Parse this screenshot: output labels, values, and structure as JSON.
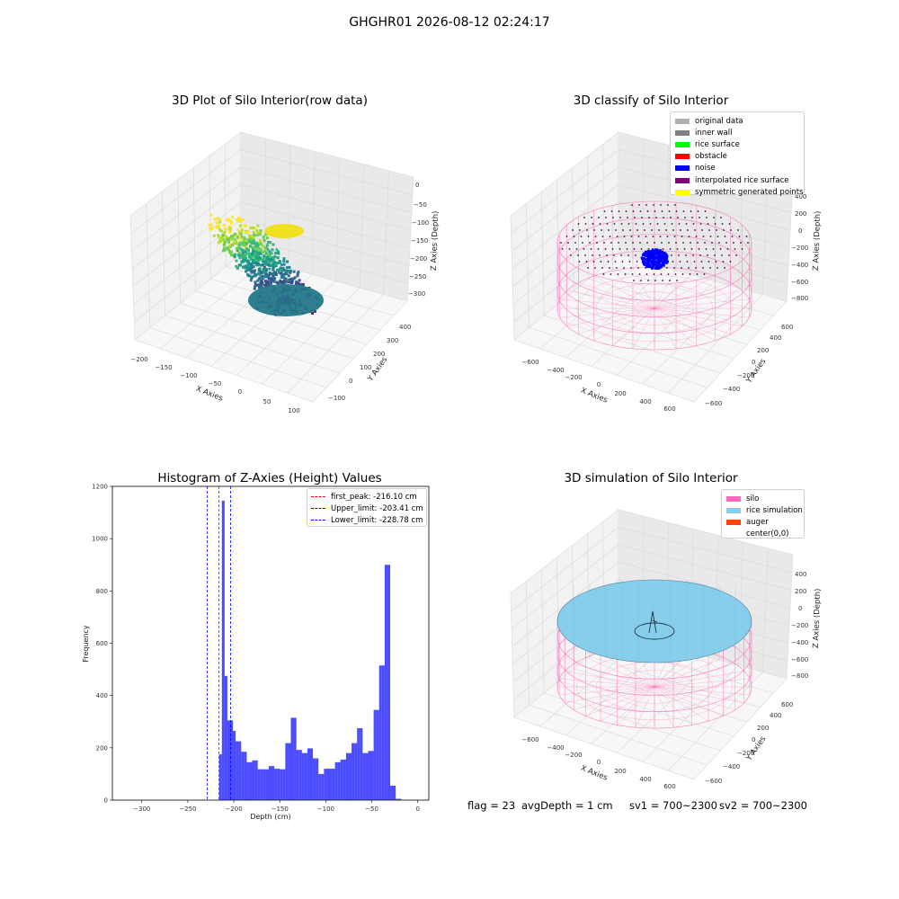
{
  "figure": {
    "suptitle": "GHGHR01 2026-08-12 02:24:17",
    "footer": {
      "flag": "flag = 23",
      "avg_depth": "avgDepth = 1 cm",
      "sv1": "sv1 = 700~2300",
      "sv2": "sv2 = 700~2300"
    }
  },
  "panels": {
    "raw": {
      "title": "3D Plot of Silo Interior(row data)",
      "xlabel": "X Axies",
      "ylabel": "Y Axies",
      "zlabel": "Z Axies (Depth)",
      "xticks": [
        "−200",
        "−150",
        "−100",
        "−50",
        "0",
        "50",
        "100"
      ],
      "yticks": [
        "−100",
        "0",
        "100",
        "200",
        "300",
        "400"
      ],
      "zticks": [
        "0",
        "−50",
        "−100",
        "−150",
        "−200",
        "−250",
        "−300"
      ],
      "colormap": "viridis"
    },
    "classify": {
      "title": "3D classify of Silo Interior",
      "xlabel": "X Axies",
      "ylabel": "Y Axies",
      "zlabel": "Z Axies (Depth)",
      "xticks": [
        "−600",
        "−400",
        "−200",
        "0",
        "200",
        "400",
        "600"
      ],
      "yticks": [
        "−600",
        "−400",
        "−200",
        "0",
        "200",
        "400",
        "600"
      ],
      "zticks": [
        "400",
        "200",
        "0",
        "−200",
        "−400",
        "−600",
        "−800"
      ],
      "legend": [
        {
          "label": "original data",
          "color": "#b0b0b0"
        },
        {
          "label": "inner wall",
          "color": "#808080"
        },
        {
          "label": "rice surface",
          "color": "#00ff00"
        },
        {
          "label": "obstacle",
          "color": "#ff0000"
        },
        {
          "label": "noise",
          "color": "#0000ff"
        },
        {
          "label": "interpolated rice surface",
          "color": "#800080"
        },
        {
          "label": "symmetric generated points",
          "color": "#ffff00"
        }
      ]
    },
    "simulation": {
      "title": "3D simulation of Silo Interior",
      "xlabel": "X Axies",
      "ylabel": "Y Axies",
      "zlabel": "Z Axies (Depth)",
      "xticks": [
        "−600",
        "−400",
        "−200",
        "0",
        "200",
        "400",
        "600"
      ],
      "yticks": [
        "−600",
        "−400",
        "−200",
        "0",
        "200",
        "400",
        "600"
      ],
      "zticks": [
        "400",
        "200",
        "0",
        "−200",
        "−400",
        "−600",
        "−800"
      ],
      "legend": [
        {
          "label": "silo",
          "color": "#ff69b4"
        },
        {
          "label": "rice simulation",
          "color": "#87ceeb"
        },
        {
          "label": "auger",
          "color": "#ff4500"
        },
        {
          "label": "center(0,0)",
          "color": "#ffffff"
        }
      ]
    }
  },
  "chart_data": [
    {
      "type": "scatter",
      "title": "3D Plot of Silo Interior(row data)",
      "xlabel": "X Axies",
      "ylabel": "Y Axies",
      "zlabel": "Z Axies (Depth)",
      "xlim": [
        -210,
        120
      ],
      "ylim": [
        -130,
        460
      ],
      "zlim": [
        -330,
        10
      ]
    },
    {
      "type": "scatter",
      "title": "3D classify of Silo Interior",
      "xlabel": "X Axies",
      "ylabel": "Y Axies",
      "zlabel": "Z Axies (Depth)",
      "xlim": [
        -700,
        700
      ],
      "ylim": [
        -700,
        700
      ],
      "zlim": [
        -900,
        400
      ]
    },
    {
      "type": "bar",
      "title": "Histogram of Z-Axies (Height) Values",
      "xlabel": "Depth (cm)",
      "ylabel": "Frequency",
      "xlim": [
        -332,
        12
      ],
      "ylim": [
        0,
        1200
      ],
      "xticks": [
        -300,
        -250,
        -200,
        -150,
        -100,
        -50,
        0
      ],
      "yticks": [
        0,
        200,
        400,
        600,
        800,
        1000,
        1200
      ],
      "bar_color": "#0000ff",
      "bins_left": [
        -222,
        -219,
        -216,
        -213,
        -210,
        -207,
        -204,
        -201,
        -198,
        -195,
        -192,
        -189,
        -186,
        -183,
        -180,
        -177,
        -174,
        -171,
        -168,
        -165,
        -162,
        -159,
        -156,
        -153,
        -150,
        -147,
        -144,
        -141,
        -138,
        -135,
        -132,
        -129,
        -126,
        -123,
        -120,
        -117,
        -114,
        -111,
        -108,
        -105,
        -102,
        -99,
        -96,
        -93,
        -90,
        -87,
        -84,
        -81,
        -78,
        -75,
        -72,
        -69,
        -66,
        -63,
        -60,
        -57,
        -54,
        -51,
        -48,
        -45,
        -42,
        -39,
        -36,
        -33,
        -30,
        -27,
        -24,
        -21,
        -18,
        -15,
        -12,
        -9,
        -6,
        -3,
        0
      ],
      "bin_width": 3,
      "values": [
        0,
        0,
        175,
        1145,
        475,
        305,
        305,
        265,
        225,
        225,
        185,
        185,
        145,
        145,
        152,
        152,
        118,
        118,
        118,
        118,
        130,
        130,
        120,
        120,
        118,
        118,
        218,
        218,
        315,
        315,
        192,
        192,
        180,
        180,
        198,
        198,
        160,
        160,
        100,
        100,
        120,
        120,
        120,
        120,
        145,
        145,
        155,
        155,
        180,
        180,
        218,
        218,
        275,
        275,
        180,
        180,
        188,
        188,
        345,
        345,
        515,
        515,
        900,
        900,
        55,
        55,
        5,
        5,
        0,
        0,
        0,
        0,
        0,
        0,
        0
      ],
      "vlines": [
        {
          "label": "first_peak: -216.10 cm",
          "x": -216.1,
          "color": "#ff0000"
        },
        {
          "label": "Upper_limit: -203.41 cm",
          "x": -203.41,
          "color": "#0000ff"
        },
        {
          "label": "Lower_limit: -228.78 cm",
          "x": -228.78,
          "color": "#0000ff"
        }
      ],
      "legend_position": "upper right"
    },
    {
      "type": "scatter",
      "title": "3D simulation of Silo Interior",
      "xlabel": "X Axies",
      "ylabel": "Y Axies",
      "zlabel": "Z Axies (Depth)",
      "xlim": [
        -700,
        700
      ],
      "ylim": [
        -700,
        700
      ],
      "zlim": [
        -900,
        500
      ]
    }
  ]
}
